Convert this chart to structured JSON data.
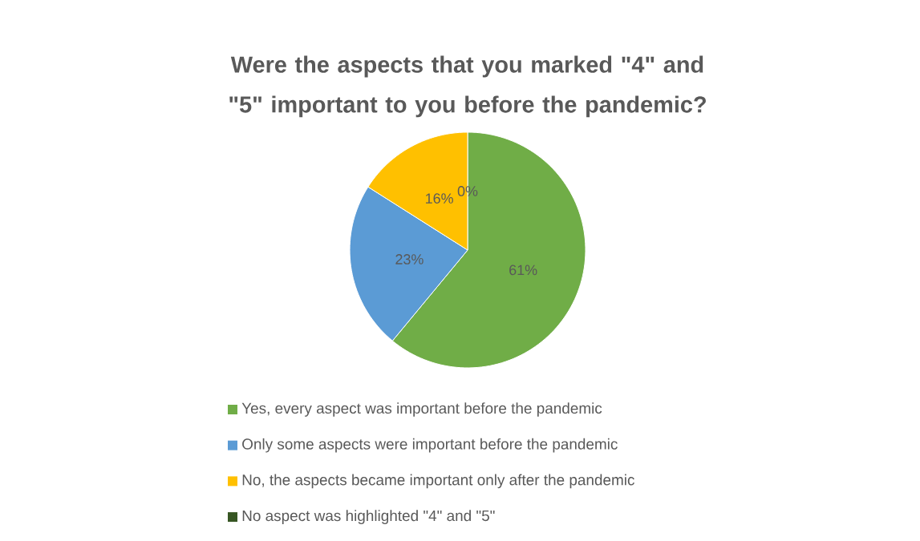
{
  "chart_data": {
    "type": "pie",
    "title": "Were the aspects that you marked \"4\" and \"5\" important to you before the pandemic?",
    "categories": [
      "Yes, every aspect was important before the pandemic",
      "Only some aspects were important before the pandemic",
      "No, the aspects became important only after the pandemic",
      "No aspect was highlighted \"4\" and \"5\""
    ],
    "values": [
      61,
      23,
      16,
      0
    ],
    "colors": [
      "#70ad47",
      "#5b9bd5",
      "#ffc000",
      "#375623"
    ],
    "value_labels": [
      "61%",
      "23%",
      "16%",
      "0%"
    ],
    "legend": "bottom"
  }
}
